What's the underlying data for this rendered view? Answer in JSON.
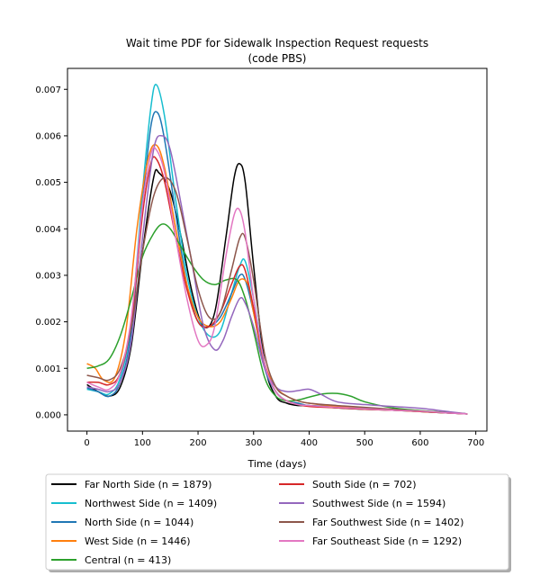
{
  "chart_data": {
    "type": "line",
    "title": "Wait time PDF for Sidewalk Inspection Request  requests",
    "subtitle": "(code PBS)",
    "xlabel": "Time (days)",
    "ylabel": "",
    "xlim": [
      -35,
      720
    ],
    "ylim": [
      -0.00035,
      0.00745
    ],
    "xticks": [
      0,
      100,
      200,
      300,
      400,
      500,
      600,
      700
    ],
    "yticks": [
      0.0,
      0.001,
      0.002,
      0.003,
      0.004,
      0.005,
      0.006,
      0.007
    ],
    "ytick_labels": [
      "0.000",
      "0.001",
      "0.002",
      "0.003",
      "0.004",
      "0.005",
      "0.006",
      "0.007"
    ],
    "grid": false,
    "legend_position": "below",
    "series": [
      {
        "name": "Far North Side (n = 1879)",
        "color": "#000000",
        "x": [
          0,
          20,
          40,
          60,
          80,
          100,
          120,
          130,
          150,
          170,
          190,
          210,
          230,
          250,
          265,
          275,
          285,
          300,
          320,
          340,
          360,
          380,
          400,
          450,
          500,
          550,
          600,
          650,
          685
        ],
        "y": [
          0.00065,
          0.0005,
          0.0004,
          0.0006,
          0.0015,
          0.0035,
          0.0051,
          0.0052,
          0.0048,
          0.0038,
          0.0026,
          0.0019,
          0.0022,
          0.0038,
          0.0051,
          0.0054,
          0.005,
          0.0032,
          0.0011,
          0.0004,
          0.00025,
          0.0002,
          0.0002,
          0.00015,
          0.00012,
          0.0001,
          8e-05,
          5e-05,
          2e-05
        ]
      },
      {
        "name": "Northwest Side (n = 1409)",
        "color": "#17becf",
        "x": [
          0,
          20,
          40,
          60,
          80,
          100,
          115,
          125,
          140,
          160,
          180,
          200,
          220,
          240,
          260,
          275,
          285,
          300,
          320,
          340,
          360,
          380,
          400,
          450,
          500,
          550,
          600,
          650,
          685
        ],
        "y": [
          0.00055,
          0.0005,
          0.00045,
          0.0008,
          0.002,
          0.0048,
          0.0066,
          0.0071,
          0.0064,
          0.0046,
          0.003,
          0.0021,
          0.0017,
          0.0018,
          0.0026,
          0.0032,
          0.0033,
          0.0025,
          0.0011,
          0.0005,
          0.0003,
          0.00025,
          0.0002,
          0.00018,
          0.00014,
          0.0001,
          7e-05,
          4e-05,
          2e-05
        ]
      },
      {
        "name": "North Side (n = 1044)",
        "color": "#1f77b4",
        "x": [
          0,
          20,
          40,
          60,
          80,
          100,
          115,
          127,
          140,
          160,
          180,
          200,
          220,
          240,
          260,
          275,
          285,
          300,
          320,
          340,
          360,
          380,
          400,
          450,
          500,
          550,
          600,
          650,
          685
        ],
        "y": [
          0.00058,
          0.0005,
          0.0004,
          0.0007,
          0.0018,
          0.0045,
          0.0062,
          0.0065,
          0.0059,
          0.0043,
          0.0028,
          0.002,
          0.0019,
          0.0021,
          0.0026,
          0.003,
          0.0029,
          0.0022,
          0.001,
          0.0005,
          0.0003,
          0.00025,
          0.0002,
          0.00018,
          0.00013,
          0.0001,
          7e-05,
          4e-05,
          2e-05
        ]
      },
      {
        "name": "West Side (n = 1446)",
        "color": "#ff7f0e",
        "x": [
          0,
          15,
          30,
          50,
          70,
          90,
          110,
          125,
          140,
          160,
          180,
          200,
          220,
          240,
          260,
          275,
          290,
          300,
          320,
          340,
          360,
          380,
          400,
          450,
          500,
          550,
          600,
          650,
          685
        ],
        "y": [
          0.0011,
          0.001,
          0.00075,
          0.0008,
          0.0018,
          0.004,
          0.0055,
          0.0058,
          0.0053,
          0.004,
          0.0028,
          0.0021,
          0.0019,
          0.002,
          0.0025,
          0.0029,
          0.0028,
          0.0022,
          0.0011,
          0.0006,
          0.0004,
          0.0003,
          0.00025,
          0.00018,
          0.00013,
          0.0001,
          7e-05,
          4e-05,
          2e-05
        ]
      },
      {
        "name": "Central (n = 413)",
        "color": "#2ca02c",
        "x": [
          0,
          20,
          40,
          60,
          80,
          100,
          120,
          135,
          150,
          170,
          190,
          210,
          230,
          250,
          270,
          285,
          300,
          320,
          340,
          360,
          380,
          400,
          425,
          450,
          475,
          500,
          550,
          600,
          650,
          685
        ],
        "y": [
          0.001,
          0.00105,
          0.0012,
          0.0017,
          0.0025,
          0.0034,
          0.0039,
          0.0041,
          0.004,
          0.0036,
          0.0032,
          0.0029,
          0.0028,
          0.0029,
          0.0029,
          0.0025,
          0.0018,
          0.0008,
          0.0004,
          0.0003,
          0.00032,
          0.00038,
          0.00045,
          0.00046,
          0.0004,
          0.00028,
          0.00015,
          9e-05,
          5e-05,
          2e-05
        ]
      },
      {
        "name": "South Side (n = 702)",
        "color": "#d62728",
        "x": [
          0,
          20,
          40,
          60,
          80,
          100,
          115,
          125,
          140,
          160,
          180,
          200,
          220,
          240,
          260,
          275,
          285,
          300,
          320,
          340,
          360,
          380,
          400,
          450,
          500,
          550,
          600,
          650,
          685
        ],
        "y": [
          0.0007,
          0.0007,
          0.00065,
          0.0009,
          0.002,
          0.0043,
          0.0054,
          0.0055,
          0.005,
          0.0038,
          0.0027,
          0.002,
          0.0019,
          0.0022,
          0.0028,
          0.0032,
          0.0031,
          0.0023,
          0.0011,
          0.0005,
          0.0003,
          0.00022,
          0.00018,
          0.00015,
          0.00012,
          0.0001,
          7e-05,
          4e-05,
          2e-05
        ]
      },
      {
        "name": "Southwest Side (n = 1594)",
        "color": "#9467bd",
        "x": [
          0,
          20,
          40,
          60,
          80,
          100,
          120,
          135,
          150,
          170,
          190,
          210,
          230,
          245,
          260,
          275,
          285,
          300,
          320,
          340,
          360,
          380,
          400,
          420,
          450,
          500,
          550,
          600,
          650,
          685
        ],
        "y": [
          0.0006,
          0.00055,
          0.0005,
          0.0007,
          0.0016,
          0.0038,
          0.0057,
          0.006,
          0.0057,
          0.0045,
          0.0032,
          0.0019,
          0.0014,
          0.0016,
          0.0021,
          0.0025,
          0.0024,
          0.0019,
          0.001,
          0.0006,
          0.0005,
          0.00052,
          0.00055,
          0.00045,
          0.00028,
          0.00022,
          0.00018,
          0.00014,
          7e-05,
          2e-05
        ]
      },
      {
        "name": "Far Southwest Side (n = 1402)",
        "color": "#8c564b",
        "x": [
          0,
          20,
          40,
          60,
          80,
          100,
          120,
          140,
          160,
          180,
          200,
          220,
          240,
          260,
          275,
          285,
          300,
          320,
          340,
          360,
          380,
          400,
          450,
          500,
          550,
          600,
          650,
          685
        ],
        "y": [
          0.00085,
          0.0008,
          0.00075,
          0.001,
          0.0019,
          0.0035,
          0.0047,
          0.0051,
          0.0048,
          0.0038,
          0.0027,
          0.0021,
          0.0022,
          0.0031,
          0.0038,
          0.0038,
          0.0029,
          0.0013,
          0.0006,
          0.0004,
          0.0003,
          0.00025,
          0.0002,
          0.00016,
          0.00012,
          8e-05,
          4e-05,
          2e-05
        ]
      },
      {
        "name": "Far Southeast Side (n = 1292)",
        "color": "#e377c2",
        "x": [
          0,
          20,
          40,
          60,
          80,
          100,
          115,
          125,
          140,
          160,
          180,
          200,
          215,
          230,
          250,
          265,
          275,
          285,
          300,
          320,
          340,
          360,
          380,
          400,
          450,
          500,
          550,
          600,
          650,
          685
        ],
        "y": [
          0.0007,
          0.0006,
          0.00055,
          0.0009,
          0.0021,
          0.0045,
          0.0056,
          0.0057,
          0.0052,
          0.0038,
          0.0025,
          0.0016,
          0.0015,
          0.0019,
          0.0034,
          0.0043,
          0.0044,
          0.0039,
          0.0025,
          0.0011,
          0.0005,
          0.0003,
          0.00022,
          0.0002,
          0.00016,
          0.00013,
          0.0001,
          8e-05,
          4e-05,
          2e-05
        ]
      }
    ]
  }
}
